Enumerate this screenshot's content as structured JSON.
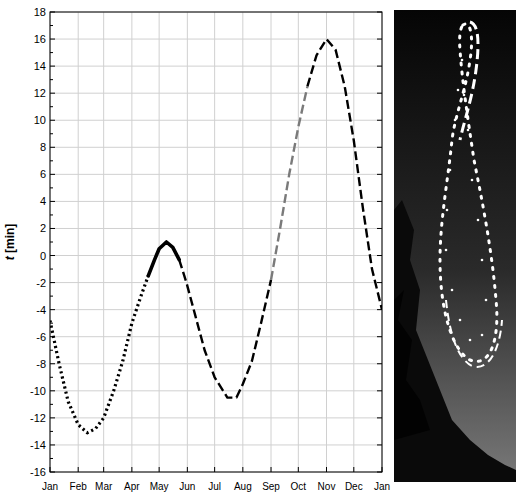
{
  "chart_data": {
    "type": "line",
    "y_label": "t [min]",
    "x": [
      0,
      10,
      20,
      31,
      41,
      50,
      59,
      70,
      80,
      90,
      100,
      108,
      115,
      120,
      128,
      135,
      142,
      150,
      160,
      170,
      181,
      195,
      205,
      212,
      222,
      232,
      243,
      253,
      263,
      273,
      283,
      293,
      304,
      314,
      324,
      334,
      344,
      354,
      365
    ],
    "xlim": [
      0,
      365
    ],
    "xticks": [
      {
        "value": 0,
        "label": "Jan"
      },
      {
        "value": 31,
        "label": "Feb"
      },
      {
        "value": 59,
        "label": "Mar"
      },
      {
        "value": 90,
        "label": "Apr"
      },
      {
        "value": 120,
        "label": "May"
      },
      {
        "value": 151,
        "label": "Jun"
      },
      {
        "value": 181,
        "label": "Jul"
      },
      {
        "value": 212,
        "label": "Aug"
      },
      {
        "value": 243,
        "label": "Sep"
      },
      {
        "value": 273,
        "label": "Oct"
      },
      {
        "value": 304,
        "label": "Nov"
      },
      {
        "value": 334,
        "label": "Dec"
      },
      {
        "value": 365,
        "label": "Jan"
      }
    ],
    "ylim": [
      -16,
      18
    ],
    "yticks": [
      -16,
      -14,
      -12,
      -10,
      -8,
      -6,
      -4,
      -2,
      0,
      2,
      4,
      6,
      8,
      10,
      12,
      14,
      16,
      18
    ],
    "grid": true,
    "series": [
      {
        "color": "#000000",
        "line_style": "dotted",
        "values": [
          -4.8,
          -8,
          -10.8,
          -12.5,
          -13.1,
          -12.8,
          -12,
          -10,
          -7.8,
          -5,
          -3,
          -1.5,
          null,
          null,
          null,
          null,
          null,
          null,
          null,
          null,
          null,
          null,
          null,
          null,
          null,
          null,
          null,
          null,
          null,
          null,
          null,
          null,
          null,
          null,
          null,
          null,
          null,
          null,
          null
        ]
      },
      {
        "color": "#000000",
        "line_style": "solid",
        "values": [
          null,
          null,
          null,
          null,
          null,
          null,
          null,
          null,
          null,
          null,
          null,
          -1.5,
          -0.3,
          0.5,
          1.0,
          0.6,
          -0.3,
          null,
          null,
          null,
          null,
          null,
          null,
          null,
          null,
          null,
          null,
          null,
          null,
          null,
          null,
          null,
          null,
          null,
          null,
          null,
          null,
          null,
          null
        ]
      },
      {
        "color": "#000000",
        "line_style": "dashed",
        "values": [
          null,
          null,
          null,
          null,
          null,
          null,
          null,
          null,
          null,
          null,
          null,
          null,
          null,
          null,
          null,
          null,
          -0.3,
          -2.0,
          -4.5,
          -7,
          -9,
          -10.5,
          -10.5,
          -9.5,
          -7.8,
          -5,
          -1.8,
          null,
          null,
          null,
          null,
          null,
          null,
          null,
          null,
          null,
          null,
          null,
          null
        ]
      },
      {
        "color": "#7a7a7a",
        "line_style": "dashed",
        "values": [
          null,
          null,
          null,
          null,
          null,
          null,
          null,
          null,
          null,
          null,
          null,
          null,
          null,
          null,
          null,
          null,
          null,
          null,
          null,
          null,
          null,
          null,
          null,
          null,
          null,
          null,
          -1.8,
          2,
          6,
          9.5,
          12.5,
          null,
          null,
          null,
          null,
          null,
          null,
          null,
          null
        ]
      },
      {
        "color": "#000000",
        "line_style": "dashed",
        "values": [
          null,
          null,
          null,
          null,
          null,
          null,
          null,
          null,
          null,
          null,
          null,
          null,
          null,
          null,
          null,
          null,
          null,
          null,
          null,
          null,
          null,
          null,
          null,
          null,
          null,
          null,
          null,
          null,
          null,
          null,
          12.5,
          14.8,
          16,
          15.2,
          12.5,
          8.5,
          3.5,
          -1,
          -4
        ]
      }
    ]
  }
}
